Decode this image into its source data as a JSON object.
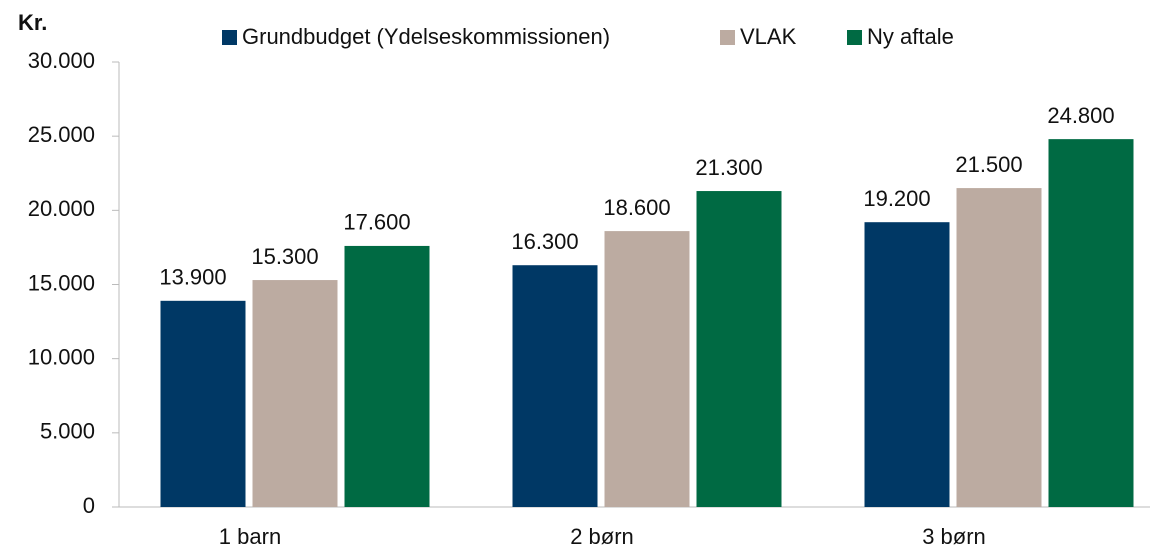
{
  "chart_data": {
    "type": "bar",
    "y_label": "Kr.",
    "categories": [
      "1 barn",
      "2 børn",
      "3 børn"
    ],
    "series": [
      {
        "name": "Grundbudget (Ydelseskommissionen)",
        "color": "#003865",
        "values": [
          13900,
          16300,
          19200
        ],
        "value_labels": [
          "13.900",
          "16.300",
          "19.200"
        ]
      },
      {
        "name": "VLAK",
        "color": "#bcaba1",
        "values": [
          15300,
          18600,
          21500
        ],
        "value_labels": [
          "15.300",
          "18.600",
          "21.500"
        ]
      },
      {
        "name": "Ny aftale",
        "color": "#006a43",
        "values": [
          17600,
          21300,
          24800
        ],
        "value_labels": [
          "17.600",
          "21.300",
          "24.800"
        ]
      }
    ],
    "ylim": [
      0,
      30000
    ],
    "yticks": [
      0,
      {
        "value": 5000,
        "label": "5.000"
      },
      {
        "value": 10000,
        "label": "10.000"
      },
      {
        "value": 15000,
        "label": "15.000"
      },
      {
        "value": 20000,
        "label": "20.000"
      },
      {
        "value": 25000,
        "label": "25.000"
      },
      {
        "value": 30000,
        "label": "30.000"
      }
    ],
    "legend": "top"
  }
}
